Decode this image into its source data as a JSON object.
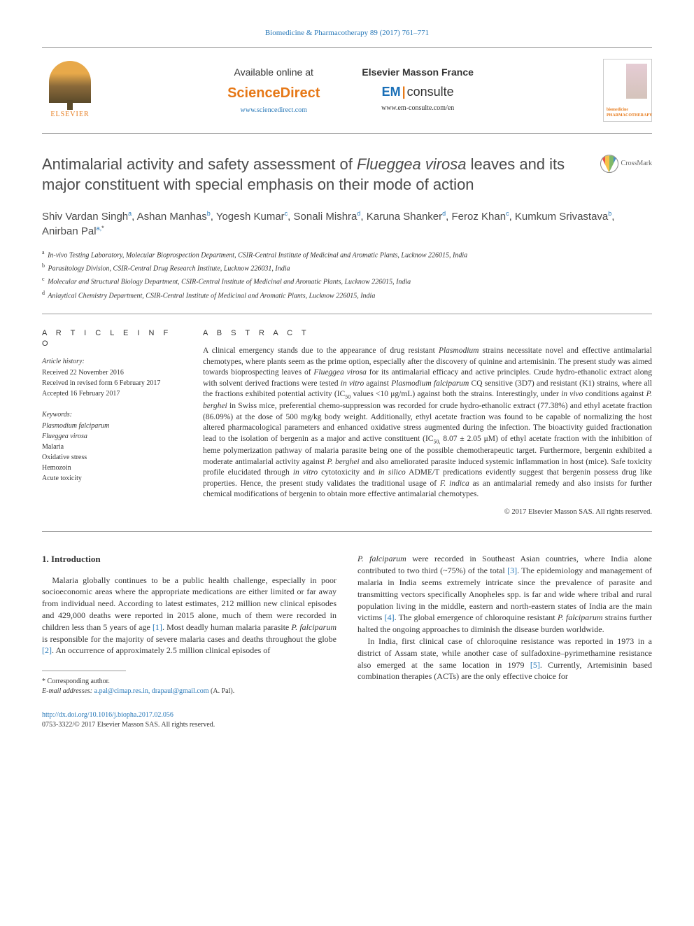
{
  "journal_header": "Biomedicine & Pharmacotherapy 89 (2017) 761–771",
  "top": {
    "elsevier_label": "ELSEVIER",
    "available_label": "Available online at",
    "sciencedirect": "ScienceDirect",
    "sciencedirect_url": "www.sciencedirect.com",
    "masson_label": "Elsevier Masson France",
    "em": "EM",
    "consulte": "consulte",
    "em_url": "www.em-consulte.com/en",
    "cover_label": "biomedicine\nPHARMACOTHERAPY"
  },
  "title": {
    "pre": "Antimalarial activity and safety assessment of ",
    "species": "Flueggea virosa",
    "post": " leaves and its major constituent with special emphasis on their mode of action"
  },
  "crossmark_label": "CrossMark",
  "authors_html": "Shiv Vardan Singh<sup>a</sup>, Ashan Manhas<sup>b</sup>, Yogesh Kumar<sup>c</sup>, Sonali Mishra<sup>d</sup>, Karuna Shanker<sup>d</sup>, Feroz Khan<sup>c</sup>, Kumkum Srivastava<sup>b</sup>, Anirban Pal<sup>a,</sup><sup class=\"star\">*</sup>",
  "affiliations": [
    {
      "sup": "a",
      "text": "In-vivo Testing Laboratory, Molecular Bioprospection Department, CSIR-Central Institute of Medicinal and Aromatic Plants, Lucknow 226015, India"
    },
    {
      "sup": "b",
      "text": "Parasitology Division, CSIR-Central Drug Research Institute, Lucknow 226031, India"
    },
    {
      "sup": "c",
      "text": "Molecular and Structural Biology Department, CSIR-Central Institute of Medicinal and Aromatic Plants, Lucknow 226015, India"
    },
    {
      "sup": "d",
      "text": "Anlaytical Chemistry Department, CSIR-Central Institute of Medicinal and Aromatic Plants, Lucknow 226015, India"
    }
  ],
  "info": {
    "heading": "A R T I C L E  I N F O",
    "history_label": "Article history:",
    "history": [
      "Received 22 November 2016",
      "Received in revised form 6 February 2017",
      "Accepted 16 February 2017"
    ],
    "keywords_label": "Keywords:",
    "keywords": [
      "Plasmodium falciparum",
      "Flueggea virosa",
      "Malaria",
      "Oxidative stress",
      "Hemozoin",
      "Acute toxicity"
    ]
  },
  "abstract": {
    "heading": "A B S T R A C T",
    "text_html": "A clinical emergency stands due to the appearance of drug resistant <span class=\"italic\">Plasmodium</span> strains necessitate novel and effective antimalarial chemotypes, where plants seem as the prime option, especially after the discovery of quinine and artemisinin. The present study was aimed towards bioprospecting leaves of <span class=\"italic\">Flueggea virosa</span> for its antimalarial efficacy and active principles. Crude hydro-ethanolic extract along with solvent derived fractions were tested <span class=\"italic\">in vitro</span> against <span class=\"italic\">Plasmodium falciparum</span> CQ sensitive (3D7) and resistant (K1) strains, where all the fractions exhibited potential activity (IC<sub>50</sub> values &lt;10 μg/mL) against both the strains. Interestingly, under <span class=\"italic\">in vivo</span> conditions against <span class=\"italic\">P. berghei</span> in Swiss mice, preferential chemo-suppression was recorded for crude hydro-ethanolic extract (77.38%) and ethyl acetate fraction (86.09%) at the dose of 500 mg/kg body weight. Additionally, ethyl acetate fraction was found to be capable of normalizing the host altered pharmacological parameters and enhanced oxidative stress augmented during the infection. The bioactivity guided fractionation lead to the isolation of bergenin as a major and active constituent (IC<sub>50,</sub> 8.07 ± 2.05 μM) of ethyl acetate fraction with the inhibition of heme polymerization pathway of malaria parasite being one of the possible chemotherapeutic target. Furthermore, bergenin exhibited a moderate antimalarial activity against <span class=\"italic\">P. berghei</span> and also ameliorated parasite induced systemic inflammation in host (mice). Safe toxicity profile elucidated through <span class=\"italic\">in vitro</span> cytotoxicity and <span class=\"italic\">in silico</span> ADME/T predications evidently suggest that bergenin possess drug like properties. Hence, the present study validates the traditional usage of <span class=\"italic\">F. indica</span> as an antimalarial remedy and also insists for further chemical modifications of bergenin to obtain more effective antimalarial chemotypes.",
    "copyright": "© 2017 Elsevier Masson SAS. All rights reserved."
  },
  "intro": {
    "heading": "1. Introduction",
    "col1_html": "<p>Malaria globally continues to be a public health challenge, especially in poor socioeconomic areas where the appropriate medications are either limited or far away from individual need. According to latest estimates, 212 million new clinical episodes and 429,000 deaths were reported in 2015 alone, much of them were recorded in children less than 5 years of age <span class=\"ref-link\">[1]</span>. Most deadly human malaria parasite <span class=\"italic\">P. falciparum</span> is responsible for the majority of severe malaria cases and deaths throughout the globe <span class=\"ref-link\">[2]</span>. An occurrence of approximately 2.5 million clinical episodes of</p>",
    "col2_html": "<p style=\"text-indent:0\"><span class=\"italic\">P. falciparum</span> were recorded in Southeast Asian countries, where India alone contributed to two third (~75%) of the total <span class=\"ref-link\">[3]</span>. The epidemiology and management of malaria in India seems extremely intricate since the prevalence of parasite and transmitting vectors specifically Anopheles spp. is far and wide where tribal and rural population living in the middle, eastern and north-eastern states of India are the main victims <span class=\"ref-link\">[4]</span>. The global emergence of chloroquine resistant <span class=\"italic\">P. falciparum</span> strains further halted the ongoing approaches to diminish the disease burden worldwide.</p><p>In India, first clinical case of chloroquine resistance was reported in 1973 in a district of Assam state, while another case of sulfadoxine–pyrimethamine resistance also emerged at the same location in 1979 <span class=\"ref-link\">[5]</span>. Currently, Artemisinin based combination therapies (ACTs) are the only effective choice for</p>"
  },
  "corresponding": {
    "label": "* Corresponding author.",
    "email_label": "E-mail addresses:",
    "emails": "a.pal@cimap.res.in, drapaul@gmail.com",
    "author": "(A. Pal)."
  },
  "footer": {
    "doi": "http://dx.doi.org/10.1016/j.biopha.2017.02.056",
    "copyright": "0753-3322/© 2017 Elsevier Masson SAS. All rights reserved."
  },
  "colors": {
    "link": "#2878b8",
    "orange": "#e67817",
    "text": "#333333",
    "rule": "#999999"
  }
}
